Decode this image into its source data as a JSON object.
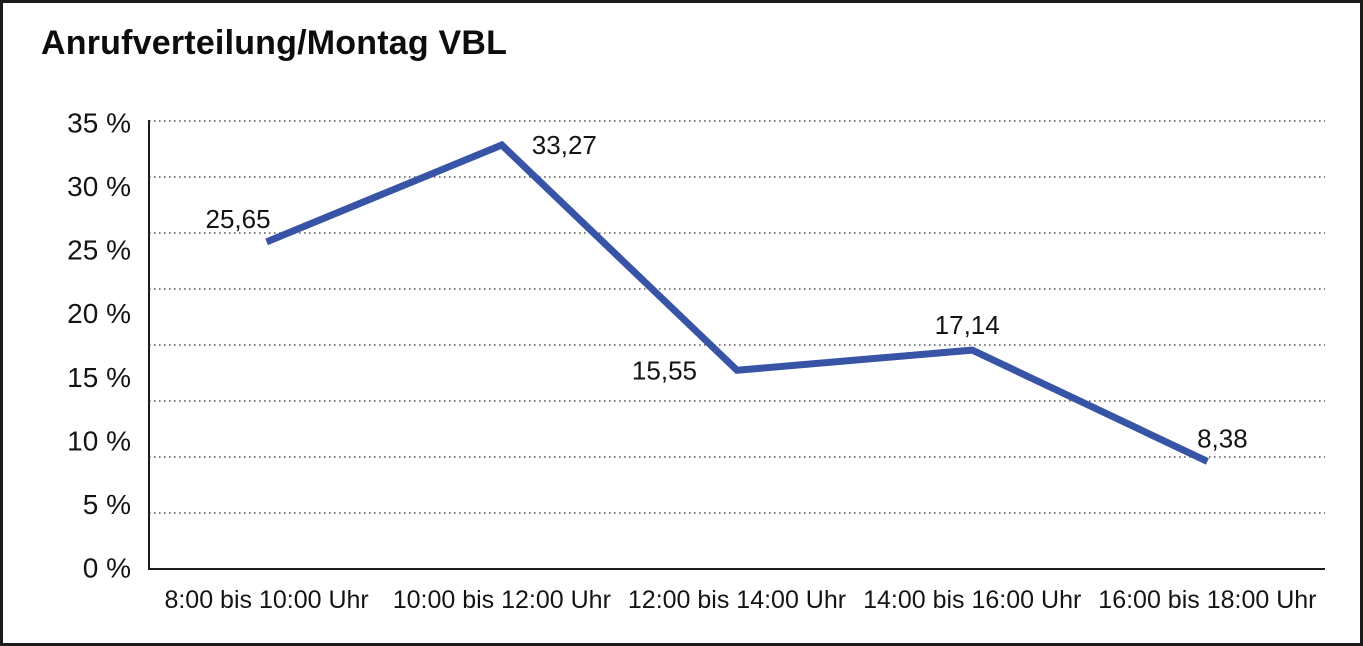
{
  "panel": {
    "background": "#ffffff",
    "border_color": "#1b1b1b"
  },
  "chart_data": {
    "type": "line",
    "title": "Anrufverteilung/Montag VBL",
    "categories": [
      "8:00 bis 10:00 Uhr",
      "10:00 bis 12:00 Uhr",
      "12:00 bis 14:00 Uhr",
      "14:00 bis 16:00 Uhr",
      "16:00 bis 18:00 Uhr"
    ],
    "values": [
      25.65,
      33.27,
      15.55,
      17.14,
      8.38
    ],
    "value_labels": [
      "25,65",
      "33,27",
      "15,55",
      "17,14",
      "8,38"
    ],
    "y_ticks": [
      "35 %",
      "30 %",
      "25 %",
      "20 %",
      "15 %",
      "10 %",
      "5 %",
      "0 %"
    ],
    "y_tick_values": [
      35,
      30,
      25,
      20,
      15,
      10,
      5,
      0
    ],
    "ylim": [
      0,
      35
    ],
    "xlabel": "",
    "ylabel": "",
    "legend": "none",
    "grid": "horizontal-dotted",
    "line_color": "#3854a6",
    "grid_color": "#3a3a3a",
    "axis_color": "#1c1c1c",
    "text_color": "#141414"
  }
}
